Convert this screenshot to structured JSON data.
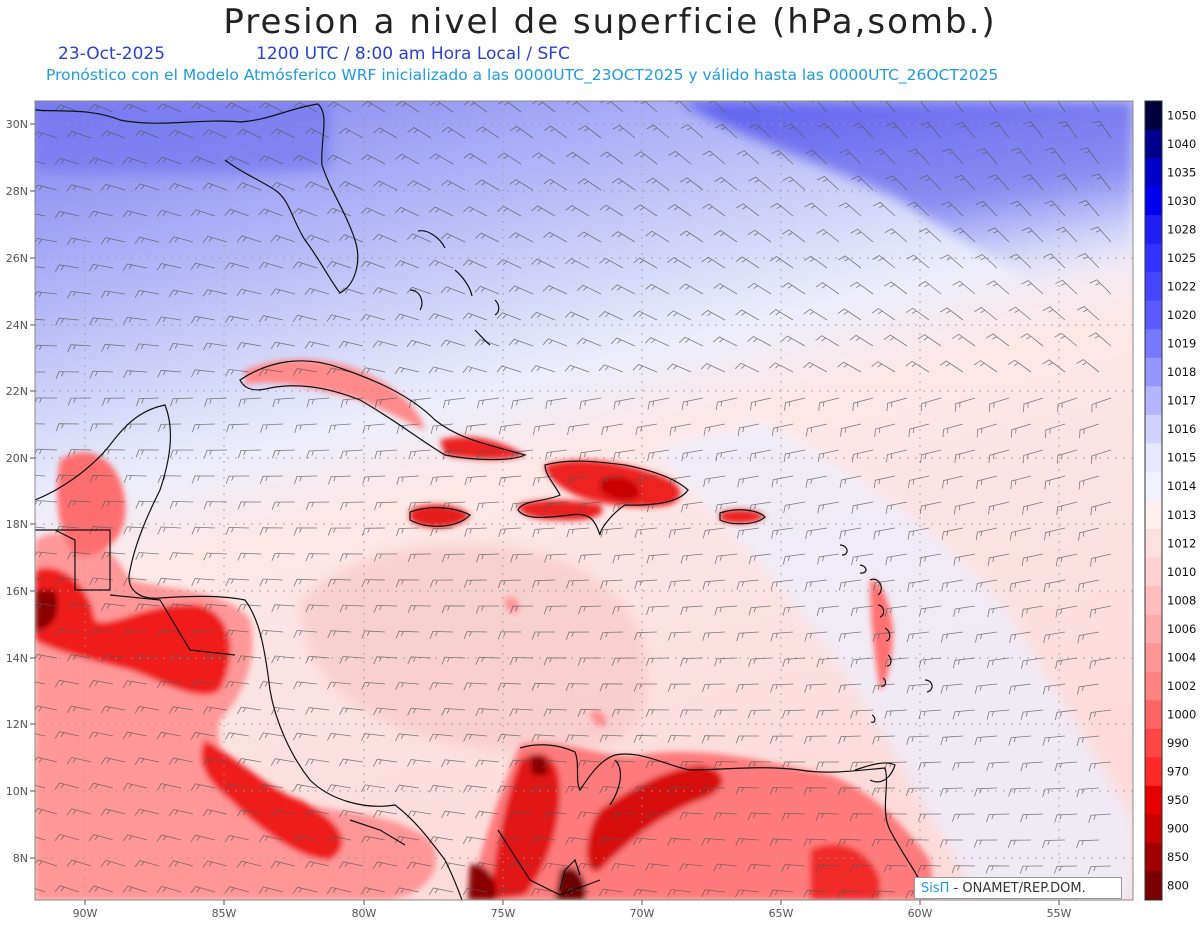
{
  "header": {
    "title": "Presion a nivel de superficie (hPa,somb.)",
    "date": "23-Oct-2025",
    "time_info": "1200 UTC / 8:00 am Hora Local / SFC",
    "model_info": "Pronóstico con el Modelo Atmósferico WRF inicializado a las 0000UTC_23OCT2025 y válido hasta las  0000UTC_26OCT2025"
  },
  "axes": {
    "lat_labels": [
      "30N",
      "28N",
      "26N",
      "24N",
      "22N",
      "20N",
      "18N",
      "16N",
      "14N",
      "12N",
      "10N",
      "8N"
    ],
    "lon_labels": [
      "90W",
      "85W",
      "80W",
      "75W",
      "70W",
      "65W",
      "60W",
      "55W"
    ]
  },
  "colorbar": {
    "levels": [
      "1050",
      "1040",
      "1035",
      "1030",
      "1028",
      "1025",
      "1022",
      "1020",
      "1019",
      "1018",
      "1017",
      "1016",
      "1015",
      "1014",
      "1013",
      "1012",
      "1010",
      "1008",
      "1006",
      "1004",
      "1002",
      "1000",
      "990",
      "970",
      "950",
      "900",
      "850",
      "800"
    ],
    "colors": [
      "#00003c",
      "#00008c",
      "#0000c8",
      "#0000f0",
      "#1e1ef5",
      "#3232ff",
      "#4646ff",
      "#5a5aff",
      "#7878ff",
      "#9696ff",
      "#b4b4ff",
      "#d2d2ff",
      "#e6e6ff",
      "#f2f2ff",
      "#fff0f0",
      "#ffe0e0",
      "#ffd0d0",
      "#ffbebe",
      "#ffaaaa",
      "#ff9696",
      "#ff8282",
      "#ff6464",
      "#ff4646",
      "#ff2828",
      "#e60000",
      "#c80000",
      "#a00000",
      "#780000"
    ]
  },
  "credit": {
    "brand": "SisΠ",
    "text": " - ONAMET/REP.DOM."
  }
}
